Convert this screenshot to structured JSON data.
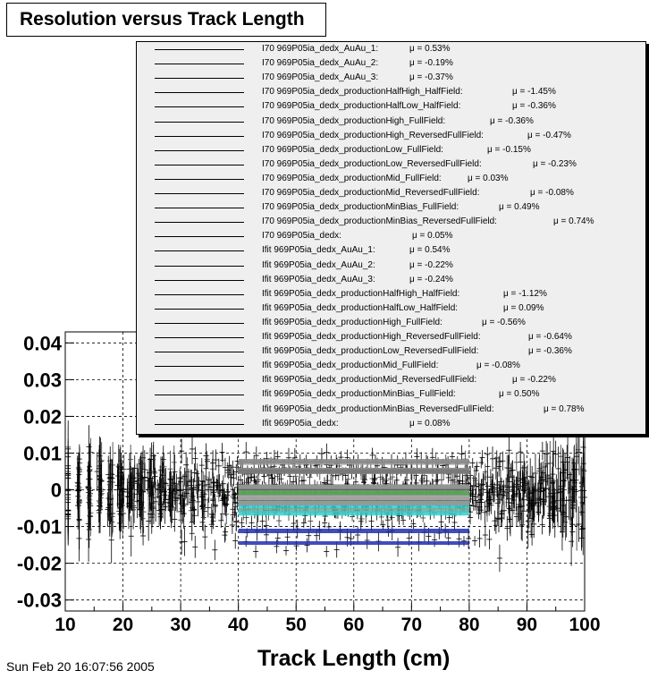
{
  "title": "Resolution versus Track Length",
  "timestamp": "Sun Feb 20 16:07:56 2005",
  "chart_data": {
    "type": "scatter",
    "title": "Resolution versus Track Length",
    "xlabel": "Track Length (cm)",
    "ylabel": "",
    "xlim": [
      10,
      100
    ],
    "ylim": [
      -0.033,
      0.043
    ],
    "x_ticks": [
      "10",
      "20",
      "30",
      "40",
      "50",
      "60",
      "70",
      "80",
      "90",
      "100"
    ],
    "y_ticks": [
      "-0.03",
      "-0.02",
      "-0.01",
      "0",
      "0.01",
      "0.02",
      "0.03",
      "0.04"
    ],
    "grid": true,
    "legend_position": "top-right",
    "fit_range": [
      40,
      80
    ],
    "series": [
      {
        "name": "I70  969P05ia_dedx_AuAu_1:",
        "mu": "0.53%",
        "value": 0.0053
      },
      {
        "name": "I70  969P05ia_dedx_AuAu_2:",
        "mu": "-0.19%",
        "value": -0.0019
      },
      {
        "name": "I70  969P05ia_dedx_AuAu_3:",
        "mu": "-0.37%",
        "value": -0.0037
      },
      {
        "name": "I70  969P05ia_dedx_productionHalfHigh_HalfField:",
        "mu": "-1.45%",
        "value": -0.0145
      },
      {
        "name": "I70  969P05ia_dedx_productionHalfLow_HalfField:",
        "mu": "-0.36%",
        "value": -0.0036
      },
      {
        "name": "I70  969P05ia_dedx_productionHigh_FullField:",
        "mu": "-0.36%",
        "value": -0.0036
      },
      {
        "name": "I70  969P05ia_dedx_productionHigh_ReversedFullField:",
        "mu": "-0.47%",
        "value": -0.0047
      },
      {
        "name": "I70  969P05ia_dedx_productionLow_FullField:",
        "mu": "-0.15%",
        "value": -0.0015
      },
      {
        "name": "I70  969P05ia_dedx_productionLow_ReversedFullField:",
        "mu": "-0.23%",
        "value": -0.0023
      },
      {
        "name": "I70  969P05ia_dedx_productionMid_FullField:",
        "mu": "0.03%",
        "value": 0.0003
      },
      {
        "name": "I70  969P05ia_dedx_productionMid_ReversedFullField:",
        "mu": "-0.08%",
        "value": -0.0008
      },
      {
        "name": "I70  969P05ia_dedx_productionMinBias_FullField:",
        "mu": "0.49%",
        "value": 0.0049
      },
      {
        "name": "I70  969P05ia_dedx_productionMinBias_ReversedFullField:",
        "mu": "0.74%",
        "value": 0.0074
      },
      {
        "name": "I70  969P05ia_dedx:",
        "mu": "0.05%",
        "value": 0.0005
      },
      {
        "name": "Ifit  969P05ia_dedx_AuAu_1:",
        "mu": "0.54%",
        "value": 0.0054
      },
      {
        "name": "Ifit  969P05ia_dedx_AuAu_2:",
        "mu": "-0.22%",
        "value": -0.0022
      },
      {
        "name": "Ifit  969P05ia_dedx_AuAu_3:",
        "mu": "-0.24%",
        "value": -0.0024
      },
      {
        "name": "Ifit  969P05ia_dedx_productionHalfHigh_HalfField:",
        "mu": "-1.12%",
        "value": -0.0112
      },
      {
        "name": "Ifit  969P05ia_dedx_productionHalfLow_HalfField:",
        "mu": "0.09%",
        "value": 0.0009
      },
      {
        "name": "Ifit  969P05ia_dedx_productionHigh_FullField:",
        "mu": "-0.56%",
        "value": -0.0056
      },
      {
        "name": "Ifit  969P05ia_dedx_productionHigh_ReversedFullField:",
        "mu": "-0.64%",
        "value": -0.0064
      },
      {
        "name": "Ifit  969P05ia_dedx_productionLow_ReversedFullField:",
        "mu": "-0.36%",
        "value": -0.0036
      },
      {
        "name": "Ifit  969P05ia_dedx_productionMid_FullField:",
        "mu": "-0.08%",
        "value": -0.0008
      },
      {
        "name": "Ifit  969P05ia_dedx_productionMid_ReversedFullField:",
        "mu": "-0.22%",
        "value": -0.0022
      },
      {
        "name": "Ifit  969P05ia_dedx_productionMinBias_FullField:",
        "mu": "0.50%",
        "value": 0.005
      },
      {
        "name": "Ifit  969P05ia_dedx_productionMinBias_ReversedFullField:",
        "mu": "0.78%",
        "value": 0.0078
      },
      {
        "name": "Ifit  969P05ia_dedx:",
        "mu": "0.08%",
        "value": 0.0008
      }
    ]
  }
}
